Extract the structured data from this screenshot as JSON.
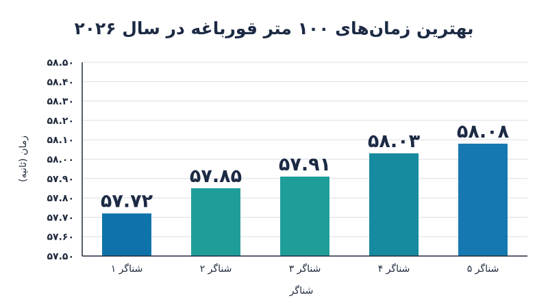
{
  "chart_data": {
    "type": "bar",
    "title": "بهترین زمان‌های ۱۰۰ متر قورباغه در سال ۲۰۲۶",
    "xlabel": "شناگر",
    "ylabel": "زمان (ثانیه)",
    "categories": [
      "شناگر ۱",
      "شناگر ۲",
      "شناگر ۳",
      "شناگر ۴",
      "شناگر ۵"
    ],
    "values": [
      57.72,
      57.85,
      57.91,
      58.03,
      58.08
    ],
    "value_labels": [
      "۵۷.۷۲",
      "۵۷.۸۵",
      "۵۷.۹۱",
      "۵۸.۰۳",
      "۵۸.۰۸"
    ],
    "bar_colors": [
      "#0f72aa",
      "#1f9e99",
      "#1f9e99",
      "#168a9e",
      "#1578b0"
    ],
    "ylim": [
      57.5,
      58.5
    ],
    "yticks": [
      57.5,
      57.6,
      57.7,
      57.8,
      57.9,
      58.0,
      58.1,
      58.2,
      58.3,
      58.4,
      58.5
    ],
    "ytick_labels": [
      "۵۷.۵۰",
      "۵۷.۶۰",
      "۵۷.۷۰",
      "۵۷.۸۰",
      "۵۷.۹۰",
      "۵۸.۰۰",
      "۵۸.۱۰",
      "۵۸.۲۰",
      "۵۸.۳۰",
      "۵۸.۴۰",
      "۵۸.۵۰"
    ],
    "grid": true,
    "grid_axis": "y",
    "legend": "none"
  }
}
